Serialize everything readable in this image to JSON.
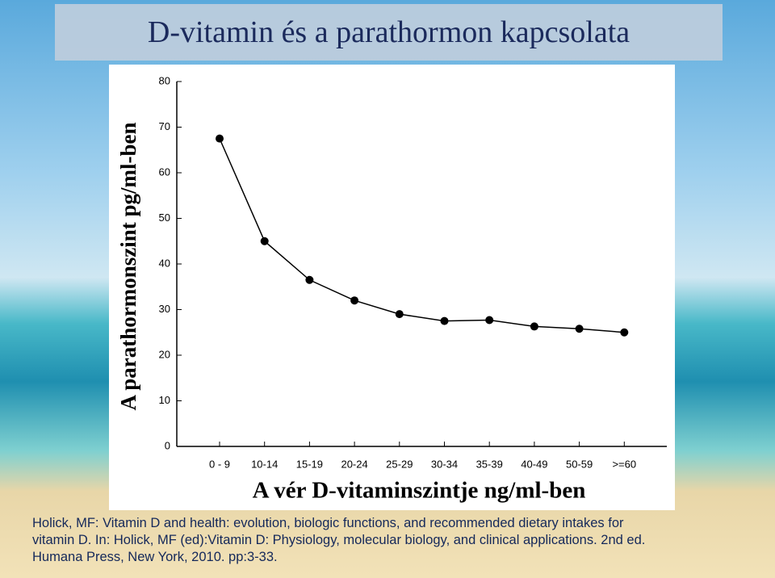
{
  "chart_data": {
    "type": "line",
    "title": "D-vitamin és a parathormon kapcsolata",
    "x_label": "A vér D-vitaminszintje ng/ml-ben",
    "y_label": "A parathormonszint pg/ml-ben",
    "categories": [
      "0 - 9",
      "10-14",
      "15-19",
      "20-24",
      "25-29",
      "30-34",
      "35-39",
      "40-49",
      "50-59",
      ">=60"
    ],
    "values": [
      67.5,
      45,
      36.5,
      32,
      29,
      27.5,
      27.7,
      26.3,
      25.8,
      25
    ],
    "color": "#000000",
    "ylim": [
      0,
      80
    ],
    "yticks": [
      0,
      10,
      20,
      30,
      40,
      50,
      60,
      70,
      80
    ]
  },
  "citation": [
    "Holick, MF: Vitamin D and health: evolution, biologic functions, and recommended dietary intakes for",
    "vitamin D. In: Holick, MF (ed):Vitamin D: Physiology, molecular biology, and clinical applications. 2nd ed.",
    "Humana Press, New York, 2010. pp:3-33."
  ]
}
